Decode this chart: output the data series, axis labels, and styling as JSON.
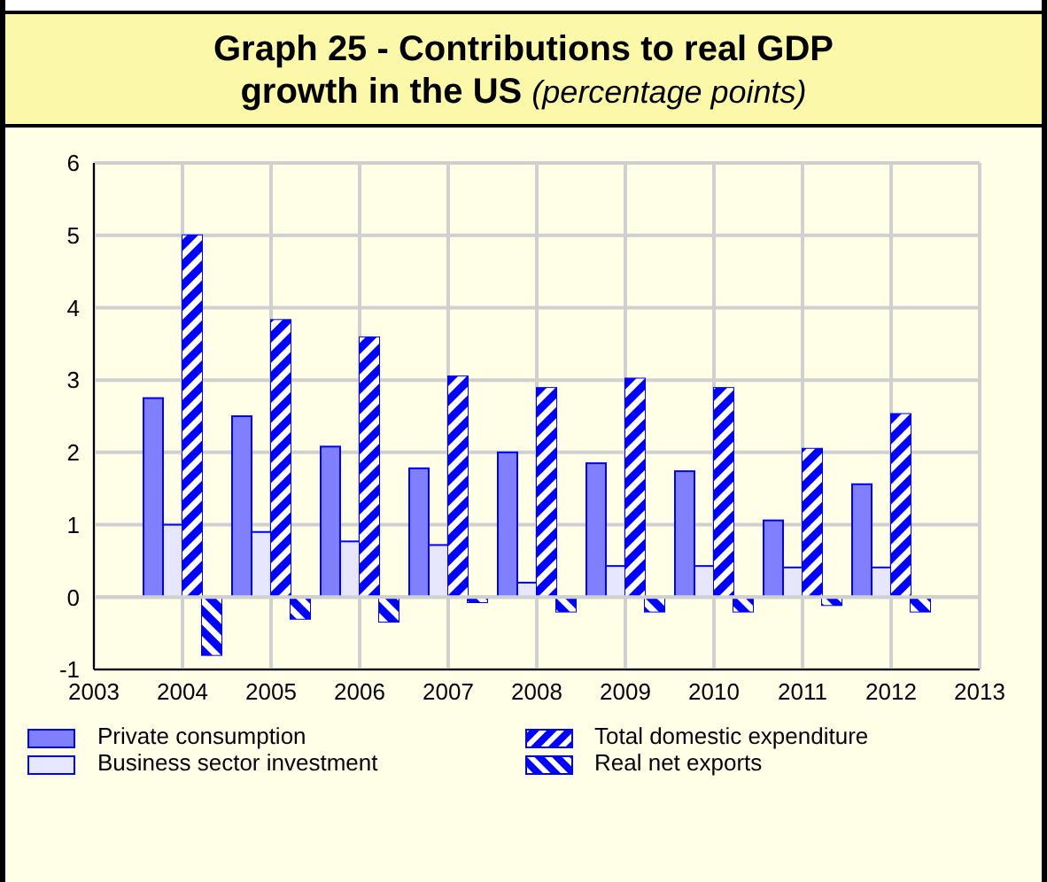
{
  "chart_data": {
    "type": "bar",
    "title": "Graph 25 - Contributions to real GDP growth in the US",
    "subtitle": "(percentage points)",
    "x": [
      2004,
      2005,
      2006,
      2007,
      2008,
      2009,
      2010,
      2011,
      2012
    ],
    "xlim": [
      2003,
      2013
    ],
    "xticks": [
      2003,
      2004,
      2005,
      2006,
      2007,
      2008,
      2009,
      2010,
      2011,
      2012,
      2013
    ],
    "ylim": [
      -1,
      6
    ],
    "yticks": [
      -1,
      0,
      1,
      2,
      3,
      4,
      5,
      6
    ],
    "grid": true,
    "legend": "bottom",
    "series": [
      {
        "name": "Private consumption",
        "color": "#8080ff",
        "values": [
          2.75,
          2.5,
          2.08,
          1.78,
          2.0,
          1.85,
          1.74,
          1.06,
          1.56
        ]
      },
      {
        "name": "Business sector investment",
        "color": "#e6e6ff",
        "values": [
          1.0,
          0.9,
          0.77,
          0.72,
          0.2,
          0.43,
          0.43,
          0.41,
          0.41
        ]
      },
      {
        "name": "Total domestic expenditure",
        "color": "#0000ff",
        "values": [
          5.0,
          3.83,
          3.59,
          3.05,
          2.89,
          3.02,
          2.89,
          2.05,
          2.53
        ]
      },
      {
        "name": "Real net exports",
        "color": "#0000ff",
        "values": [
          -0.8,
          -0.3,
          -0.34,
          -0.07,
          -0.2,
          -0.2,
          -0.2,
          -0.11,
          -0.2
        ]
      }
    ]
  }
}
